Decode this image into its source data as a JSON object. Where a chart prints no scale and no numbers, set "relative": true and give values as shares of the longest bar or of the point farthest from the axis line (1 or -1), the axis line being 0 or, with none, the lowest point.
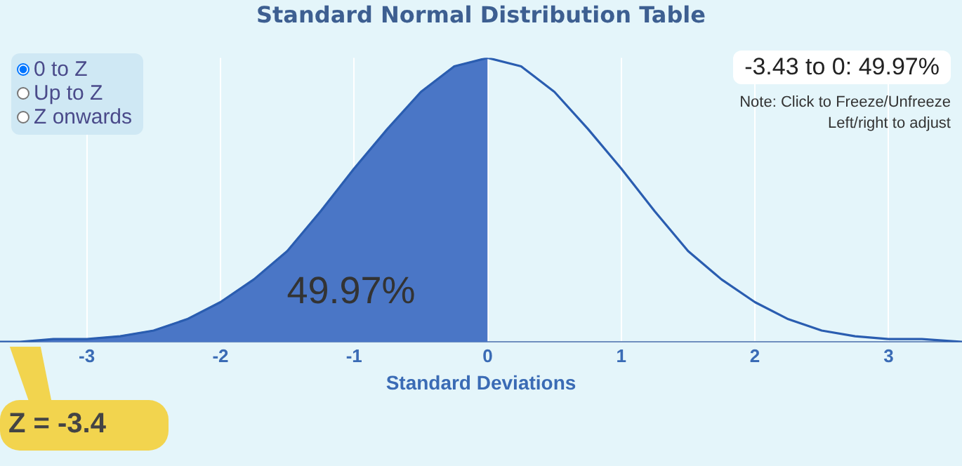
{
  "chart_data": {
    "type": "area",
    "title": "Standard Normal Distribution Table",
    "xlabel": "Standard Deviations",
    "relative": true,
    "xlim": [
      -3.65,
      3.55
    ],
    "xticks": [
      -3,
      -2,
      -1,
      0,
      1,
      2,
      3
    ],
    "grid": "x",
    "legend": false,
    "marker": "none",
    "series": [
      {
        "color": "#4a76c6",
        "x": [
          -3.43,
          -3.25,
          -3,
          -2.75,
          -2.5,
          -2.25,
          -2,
          -1.75,
          -1.5,
          -1.25,
          -1,
          -0.75,
          -0.5,
          -0.25,
          0
        ],
        "values": [
          0.0,
          0.01,
          0.01,
          0.02,
          0.04,
          0.08,
          0.14,
          0.22,
          0.32,
          0.46,
          0.61,
          0.75,
          0.88,
          0.97,
          1.0
        ]
      },
      {
        "type": "line",
        "color": "#2a5db0",
        "x": [
          -3.65,
          -3.5,
          -3.25,
          -3,
          -2.75,
          -2.5,
          -2.25,
          -2,
          -1.75,
          -1.5,
          -1.25,
          -1,
          -0.75,
          -0.5,
          -0.25,
          0,
          0.25,
          0.5,
          0.75,
          1,
          1.25,
          1.5,
          1.75,
          2,
          2.25,
          2.5,
          2.75,
          3,
          3.25,
          3.55
        ],
        "values": [
          0.0,
          0.0,
          0.01,
          0.01,
          0.02,
          0.04,
          0.08,
          0.14,
          0.22,
          0.32,
          0.46,
          0.61,
          0.75,
          0.88,
          0.97,
          1.0,
          0.97,
          0.88,
          0.75,
          0.61,
          0.46,
          0.32,
          0.22,
          0.14,
          0.08,
          0.04,
          0.02,
          0.01,
          0.01,
          0.0
        ]
      }
    ],
    "annotations": [
      "0 to Z",
      "Up to Z",
      "Z onwards",
      "-3.43 to 0: 49.97%",
      "Note: Click to Freeze/Unfreeze",
      "Left/right to adjust",
      "49.97%",
      {
        "text": "Z = -3.4",
        "x": -3.43,
        "y": 0
      }
    ]
  }
}
